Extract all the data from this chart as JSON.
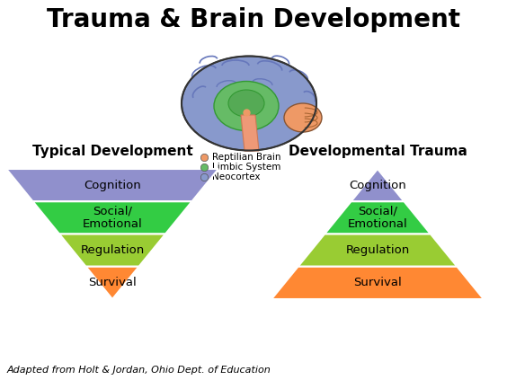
{
  "title": "Trauma & Brain Development",
  "title_fontsize": 20,
  "left_subtitle": "Typical Development",
  "right_subtitle": "Developmental Trauma",
  "subtitle_fontsize": 11,
  "layers": [
    "Cognition",
    "Social/\nEmotional",
    "Regulation",
    "Survival"
  ],
  "colors": [
    "#9090cc",
    "#33cc44",
    "#99cc33",
    "#ff8833"
  ],
  "cognition_color": "#9090cc",
  "social_color": "#33cc44",
  "regulation_color": "#99cc33",
  "survival_color": "#ff8833",
  "reptilian_color": "#ee9966",
  "limbic_color": "#66bb66",
  "neocortex_color": "#8899cc",
  "footer": "Adapted from Holt & Jordan, Ohio Dept. of Education",
  "footer_fontsize": 8,
  "bg_color": "#ffffff",
  "text_color": "#000000",
  "label_fontsize": 9.5,
  "legend_labels": [
    "Reptilian Brain",
    "Limbic System",
    "Neocortex"
  ]
}
